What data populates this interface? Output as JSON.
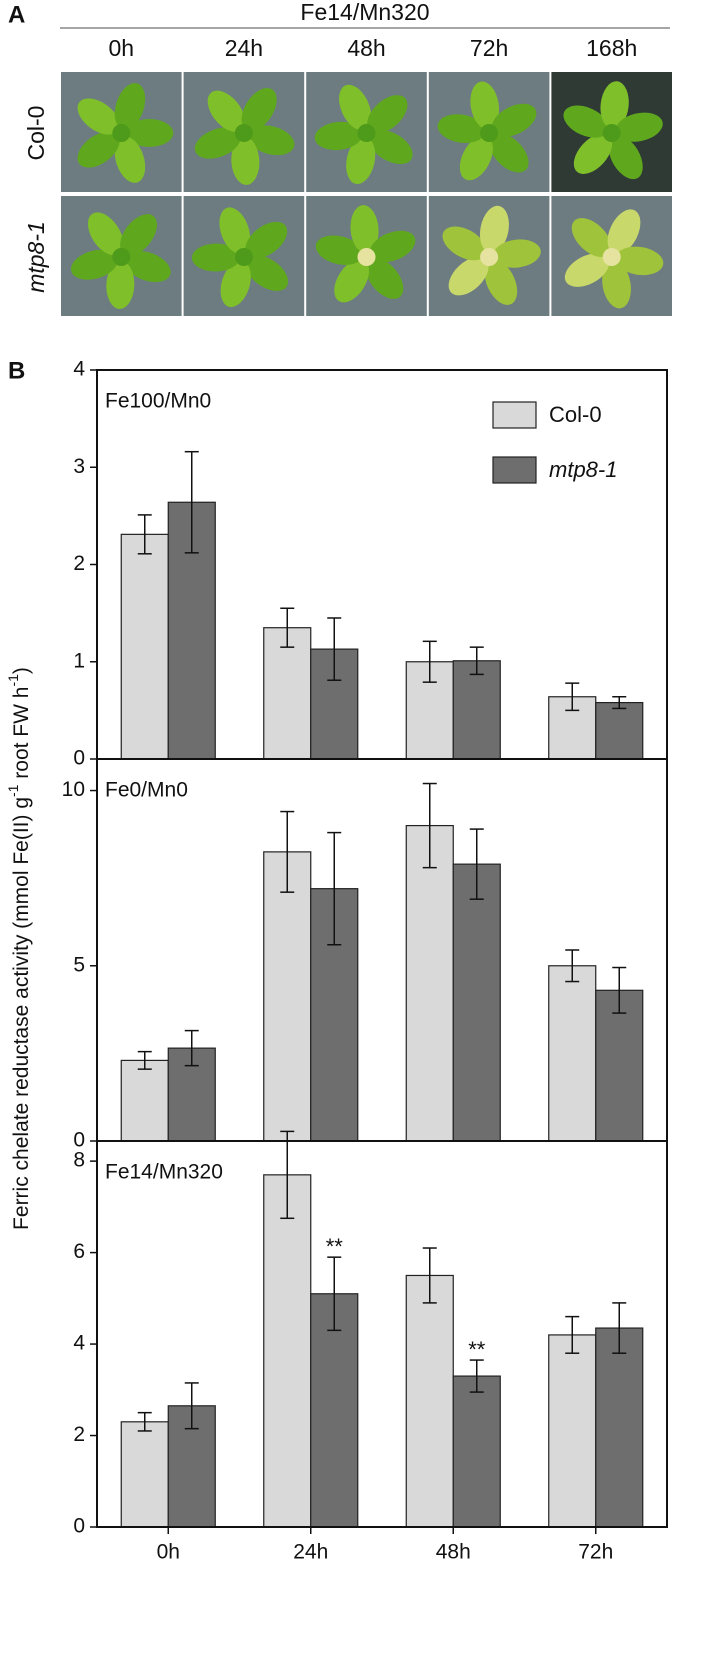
{
  "panel_a": {
    "label": "A",
    "title": "Fe14/Mn320",
    "columns": [
      "0h",
      "24h",
      "48h",
      "72h",
      "168h"
    ],
    "rows": [
      "Col-0",
      "mtp8-1"
    ]
  },
  "panel_b": {
    "label": "B"
  },
  "chart_data": [
    {
      "type": "bar",
      "title": "Fe100/Mn0",
      "ylim": [
        0,
        4
      ],
      "yticks": [
        0,
        1,
        2,
        3,
        4
      ],
      "legend": "upper right",
      "y_label": [
        {
          "text": "Ferric chelate reductase activity (mmol Fe(II) g"
        },
        {
          "text": "-1",
          "superscript": true
        },
        {
          "text": " root FW h"
        },
        {
          "text": "-1",
          "superscript": true
        },
        {
          "text": ")"
        }
      ],
      "series": [
        {
          "name": "Col-0",
          "color": "#d9d9d9",
          "values": [
            2.31,
            1.35,
            1.0,
            0.64
          ],
          "errors": [
            0.2,
            0.2,
            0.21,
            0.14
          ]
        },
        {
          "name": "mtp8-1",
          "font_style": "italic",
          "color": "#6e6e6e",
          "values": [
            2.64,
            1.13,
            1.01,
            0.58
          ],
          "errors": [
            0.52,
            0.32,
            0.14,
            0.06
          ]
        }
      ]
    },
    {
      "type": "bar",
      "title": "Fe0/Mn0",
      "ylim": [
        0,
        10.9
      ],
      "yticks": [
        0,
        5,
        10
      ],
      "series": [
        {
          "color": "#d9d9d9",
          "values": [
            2.3,
            8.25,
            9.0,
            5.0
          ],
          "errors": [
            0.25,
            1.15,
            1.2,
            0.45
          ]
        },
        {
          "color": "#6e6e6e",
          "values": [
            2.65,
            7.2,
            7.9,
            4.3
          ],
          "errors": [
            0.5,
            1.6,
            1.0,
            0.65
          ]
        }
      ]
    },
    {
      "type": "bar",
      "title": "Fe14/Mn320",
      "ylim": [
        0,
        8.44
      ],
      "yticks": [
        0,
        2,
        4,
        6,
        8
      ],
      "categories": [
        "0h",
        "24h",
        "48h",
        "72h"
      ],
      "series": [
        {
          "color": "#d9d9d9",
          "values": [
            2.3,
            7.7,
            5.5,
            4.2
          ],
          "errors": [
            0.2,
            0.95,
            0.6,
            0.4
          ]
        },
        {
          "color": "#6e6e6e",
          "values": [
            2.65,
            5.1,
            3.3,
            4.35
          ],
          "errors": [
            0.5,
            0.8,
            0.35,
            0.55
          ],
          "annotations": [
            null,
            "**",
            "**",
            null
          ]
        }
      ]
    }
  ]
}
